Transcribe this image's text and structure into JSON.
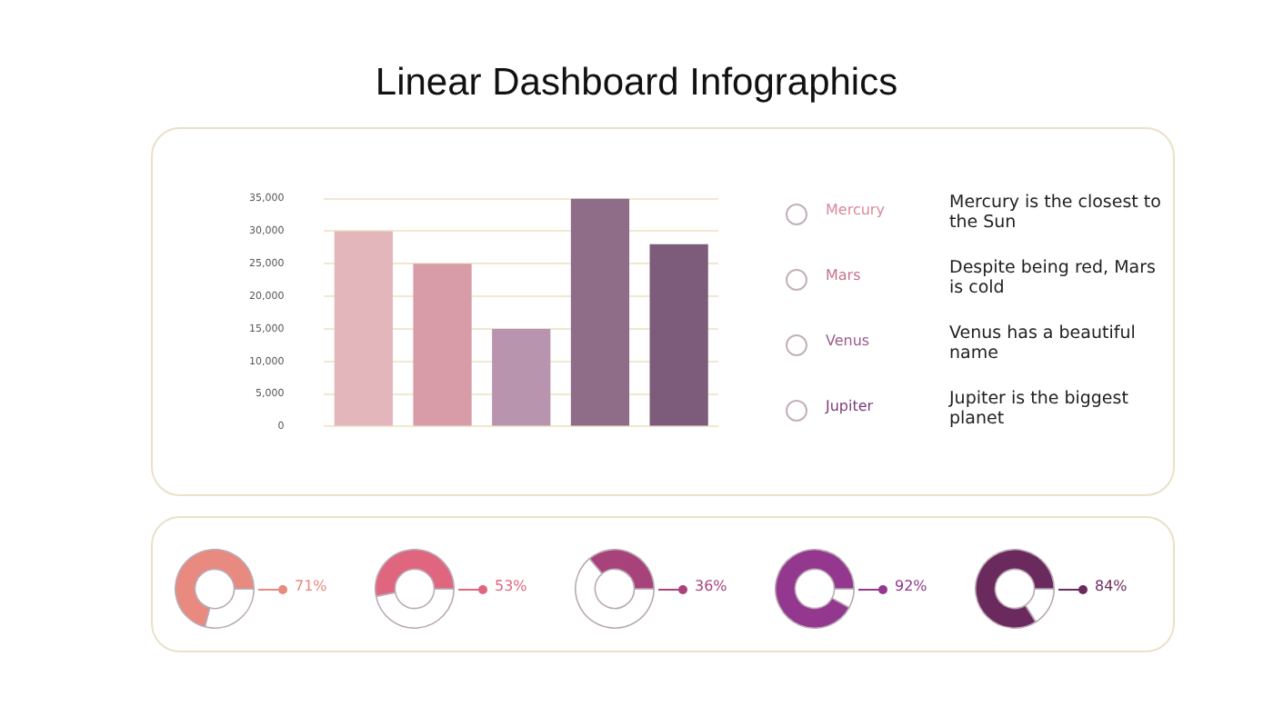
{
  "chart_data": [
    {
      "type": "bar",
      "title": "Linear Dashboard Infographics",
      "categories": [
        null,
        null,
        null,
        null,
        null
      ],
      "values": [
        30000,
        25000,
        15000,
        35000,
        28000
      ],
      "colors": [
        "#e2b6bb",
        "#d79ca8",
        "#b994ae",
        "#8f6c88",
        "#7d5b7a"
      ],
      "ylim": [
        0,
        35000
      ],
      "yticks": [
        {
          "value": 0,
          "label": "0"
        },
        {
          "value": 5000,
          "label": "5,000"
        },
        {
          "value": 10000,
          "label": "10,000"
        },
        {
          "value": 15000,
          "label": "15,000"
        },
        {
          "value": 20000,
          "label": "20,000"
        },
        {
          "value": 25000,
          "label": "25,000"
        },
        {
          "value": 30000,
          "label": "30,000"
        },
        {
          "value": 35000,
          "label": "35,000"
        }
      ],
      "grid": "y"
    },
    {
      "type": "other",
      "annotations": [
        "Mercury",
        "Mercury is the closest to the Sun",
        "Mars",
        "Despite being red, Mars is cold",
        "Venus",
        "Venus has a beautiful name",
        "Jupiter",
        "Jupiter is the biggest planet"
      ]
    },
    {
      "type": "donut",
      "categories": [
        null,
        null
      ],
      "values": [
        29,
        71
      ],
      "colors": [
        "#ffffff",
        "#e98a80"
      ],
      "value_labels": [
        null,
        "71%"
      ]
    },
    {
      "type": "donut",
      "categories": [
        null,
        null
      ],
      "values": [
        47,
        53
      ],
      "colors": [
        "#ffffff",
        "#e0667f"
      ],
      "value_labels": [
        null,
        "53%"
      ]
    },
    {
      "type": "donut",
      "categories": [
        null,
        null
      ],
      "values": [
        64,
        36
      ],
      "colors": [
        "#ffffff",
        "#a8427b"
      ],
      "value_labels": [
        null,
        "36%"
      ]
    },
    {
      "type": "donut",
      "categories": [
        null,
        null
      ],
      "values": [
        8,
        92
      ],
      "colors": [
        "#ffffff",
        "#93378f"
      ],
      "value_labels": [
        null,
        "92%"
      ]
    },
    {
      "type": "donut",
      "categories": [
        null,
        null
      ],
      "values": [
        16,
        84
      ],
      "colors": [
        "#ffffff",
        "#6b2a5e"
      ],
      "value_labels": [
        null,
        "84%"
      ]
    }
  ]
}
